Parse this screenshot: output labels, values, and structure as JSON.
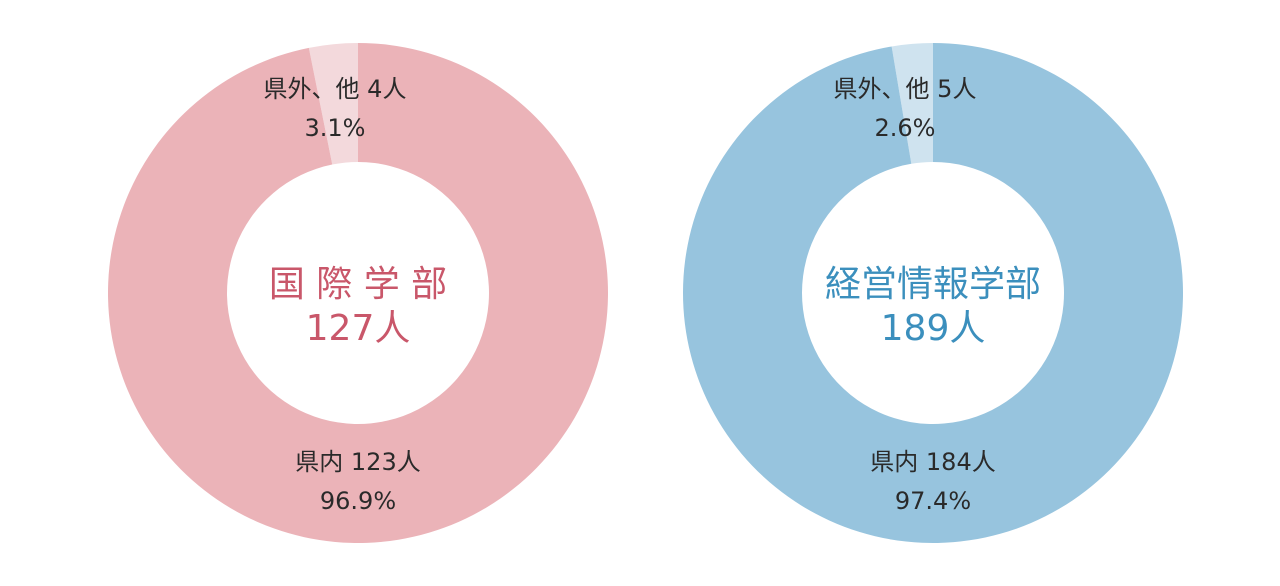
{
  "chart_data": [
    {
      "type": "pie",
      "title": "国 際 学 部",
      "total_label": "127人",
      "accent": "#c9576a",
      "slices": [
        {
          "label": "県外、他 4人",
          "percent_label": "3.1%",
          "value": 4,
          "percent": 3.1,
          "color": "#f3d9dc"
        },
        {
          "label": "県内 123人",
          "percent_label": "96.9%",
          "value": 123,
          "percent": 96.9,
          "color": "#ebb3b8"
        }
      ]
    },
    {
      "type": "pie",
      "title": "経営情報学部",
      "total_label": "189人",
      "accent": "#3b8fbd",
      "slices": [
        {
          "label": "県外、他 5人",
          "percent_label": "2.6%",
          "value": 5,
          "percent": 2.6,
          "color": "#cfe3ef"
        },
        {
          "label": "県内 184人",
          "percent_label": "97.4%",
          "value": 184,
          "percent": 97.4,
          "color": "#97c4de"
        }
      ]
    }
  ]
}
